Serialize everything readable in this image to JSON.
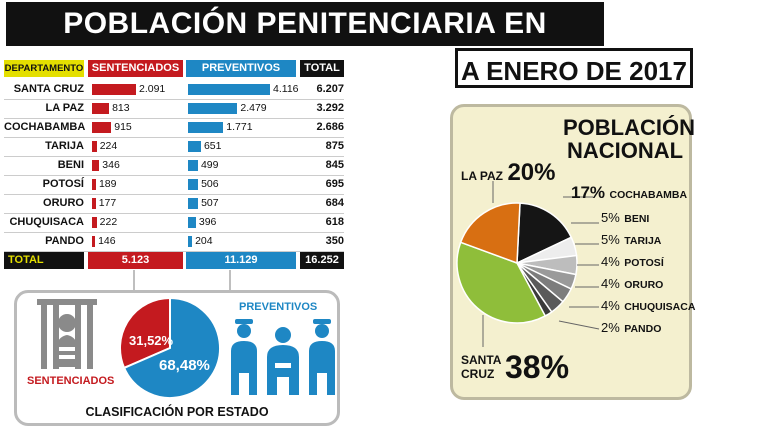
{
  "title": "POBLACIÓN PENITENCIARIA EN BOLIVIA",
  "subtitle": "A ENERO DE 2017",
  "colors": {
    "red": "#c41a1f",
    "blue": "#1e87c4",
    "dark": "#111111",
    "yellow": "#e4df00",
    "green": "#8fbe3a",
    "orange": "#d86f12"
  },
  "table": {
    "headers": {
      "department": "DEPARTAMENTO",
      "sentenced": "SENTENCIADOS",
      "preventive": "PREVENTIVOS",
      "total": "TOTAL"
    },
    "rows": [
      {
        "name": "SANTA CRUZ",
        "sentenced": "2.091",
        "preventive": "4.116",
        "total": "6.207",
        "s": 2091,
        "p": 4116
      },
      {
        "name": "LA PAZ",
        "sentenced": "813",
        "preventive": "2.479",
        "total": "3.292",
        "s": 813,
        "p": 2479
      },
      {
        "name": "COCHABAMBA",
        "sentenced": "915",
        "preventive": "1.771",
        "total": "2.686",
        "s": 915,
        "p": 1771
      },
      {
        "name": "TARIJA",
        "sentenced": "224",
        "preventive": "651",
        "total": "875",
        "s": 224,
        "p": 651
      },
      {
        "name": "BENI",
        "sentenced": "346",
        "preventive": "499",
        "total": "845",
        "s": 346,
        "p": 499
      },
      {
        "name": "POTOSÍ",
        "sentenced": "189",
        "preventive": "506",
        "total": "695",
        "s": 189,
        "p": 506
      },
      {
        "name": "ORURO",
        "sentenced": "177",
        "preventive": "507",
        "total": "684",
        "s": 177,
        "p": 507
      },
      {
        "name": "CHUQUISACA",
        "sentenced": "222",
        "preventive": "396",
        "total": "618",
        "s": 222,
        "p": 396
      },
      {
        "name": "PANDO",
        "sentenced": "146",
        "preventive": "204",
        "total": "350",
        "s": 146,
        "p": 204
      }
    ],
    "total_row": {
      "label": "TOTAL",
      "sentenced": "5.123",
      "preventive": "11.129",
      "total": "16.252"
    }
  },
  "chart_data": [
    {
      "type": "bar",
      "title": "POBLACIÓN PENITENCIARIA EN BOLIVIA",
      "categories": [
        "SANTA CRUZ",
        "LA PAZ",
        "COCHABAMBA",
        "TARIJA",
        "BENI",
        "POTOSÍ",
        "ORURO",
        "CHUQUISACA",
        "PANDO"
      ],
      "series": [
        {
          "name": "SENTENCIADOS",
          "values": [
            2091,
            813,
            915,
            224,
            346,
            189,
            177,
            222,
            146
          ]
        },
        {
          "name": "PREVENTIVOS",
          "values": [
            4116,
            2479,
            1771,
            651,
            499,
            506,
            507,
            396,
            204
          ]
        }
      ]
    },
    {
      "type": "pie",
      "title": "CLASIFICACIÓN POR ESTADO",
      "labels": [
        "SENTENCIADOS",
        "PREVENTIVOS"
      ],
      "values": [
        31.52,
        68.48
      ],
      "value_labels": [
        "31,52%",
        "68,48%"
      ]
    },
    {
      "type": "pie",
      "title": "POBLACIÓN NACIONAL",
      "labels": [
        "SANTA CRUZ",
        "LA PAZ",
        "COCHABAMBA",
        "BENI",
        "TARIJA",
        "POTOSÍ",
        "ORURO",
        "CHUQUISACA",
        "PANDO"
      ],
      "values": [
        38,
        20,
        17,
        5,
        5,
        4,
        4,
        4,
        2
      ]
    }
  ],
  "estado": {
    "title": "CLASIFICACIÓN POR ESTADO",
    "sentenced_label": "SENTENCIADOS",
    "preventive_label": "PREVENTIVOS",
    "sentenced_pct": "31,52%",
    "preventive_pct": "68,48%"
  },
  "national": {
    "title_line1": "POBLACIÓN",
    "title_line2": "NACIONAL",
    "labels": [
      {
        "pct": "20%",
        "name": "LA PAZ"
      },
      {
        "pct": "17%",
        "name": "COCHABAMBA"
      },
      {
        "pct": "5%",
        "name": "BENI"
      },
      {
        "pct": "5%",
        "name": "TARIJA"
      },
      {
        "pct": "4%",
        "name": "POTOSÍ"
      },
      {
        "pct": "4%",
        "name": "ORURO"
      },
      {
        "pct": "4%",
        "name": "CHUQUISACA"
      },
      {
        "pct": "2%",
        "name": "PANDO"
      },
      {
        "pct": "38%",
        "name_line1": "SANTA",
        "name_line2": "CRUZ"
      }
    ]
  }
}
